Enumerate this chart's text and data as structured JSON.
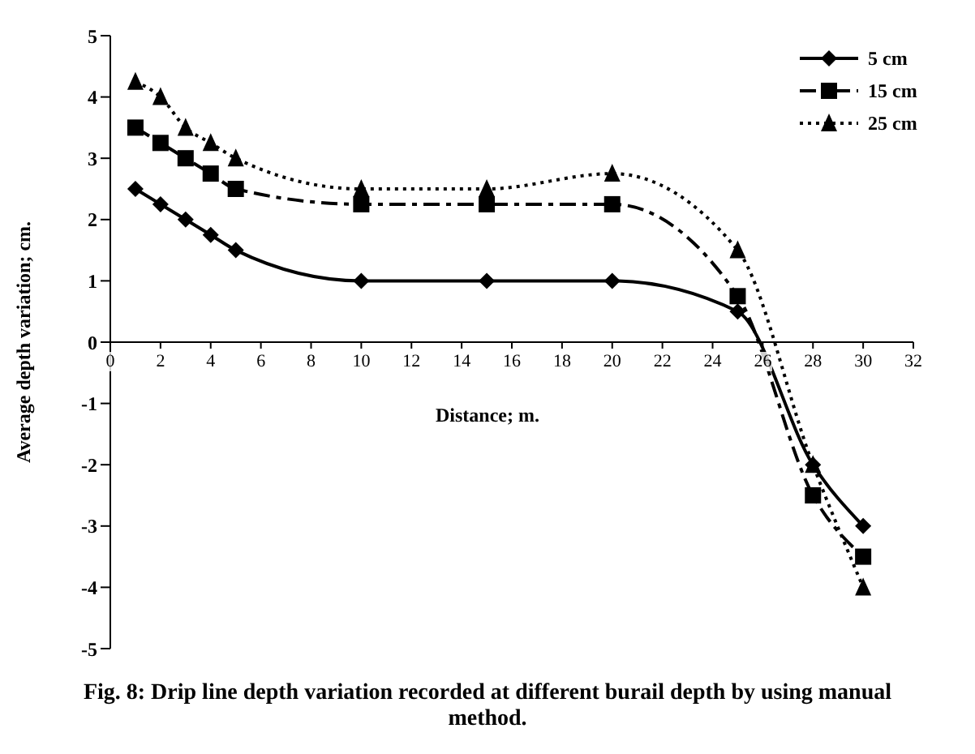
{
  "chart_data": {
    "type": "line",
    "title": "Fig. 8: Drip line depth variation recorded at different burail depth by using manual  method.",
    "xlabel": "Distance; m.",
    "ylabel": "Average depth variation; cm.",
    "x": [
      1,
      2,
      3,
      4,
      5,
      10,
      15,
      20,
      25,
      28,
      30
    ],
    "series": [
      {
        "name": "5 cm",
        "color": "#000000",
        "marker": "diamond",
        "line_style": "solid",
        "values": [
          2.5,
          2.25,
          2.0,
          1.75,
          1.5,
          1.0,
          1.0,
          1.0,
          0.5,
          -2.0,
          -3.0
        ]
      },
      {
        "name": "15 cm",
        "color": "#000000",
        "marker": "square",
        "line_style": "dashed",
        "values": [
          3.5,
          3.25,
          3.0,
          2.75,
          2.5,
          2.25,
          2.25,
          2.25,
          0.75,
          -2.5,
          -3.5
        ]
      },
      {
        "name": "25 cm",
        "color": "#000000",
        "marker": "triangle",
        "line_style": "dotted",
        "values": [
          4.25,
          4.0,
          3.5,
          3.25,
          3.0,
          2.5,
          2.5,
          2.75,
          1.5,
          -2.0,
          -4.0
        ]
      }
    ],
    "xlim": [
      0,
      32
    ],
    "xticks": [
      0,
      2,
      4,
      6,
      8,
      10,
      12,
      14,
      16,
      18,
      20,
      22,
      24,
      26,
      28,
      30,
      32
    ],
    "ylim": [
      -5,
      5
    ],
    "yticks": [
      -5,
      -4,
      -3,
      -2,
      -1,
      0,
      1,
      2,
      3,
      4,
      5
    ],
    "grid": false,
    "legend": "top right"
  }
}
